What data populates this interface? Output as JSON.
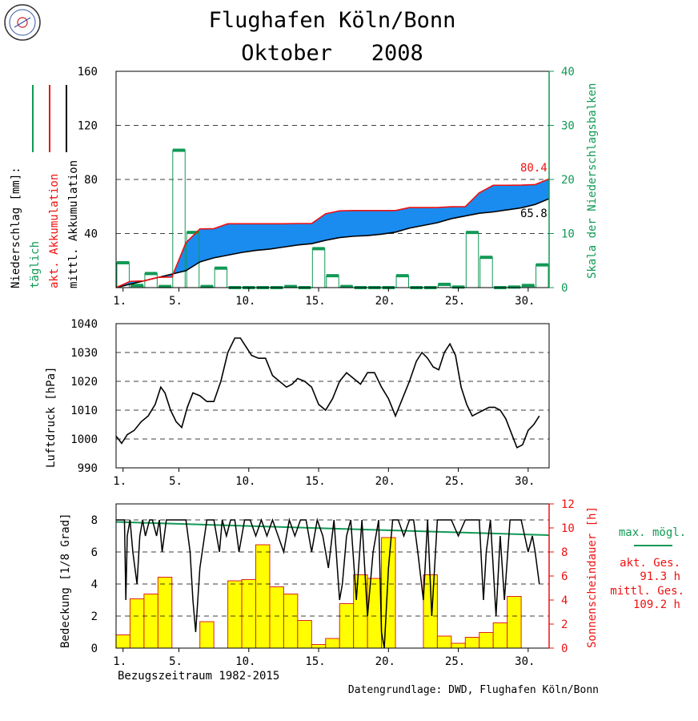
{
  "header": {
    "title_line1": "Flughafen Köln/Bonn",
    "title_line2": "Oktober   2008",
    "logo_icon": "weather-station-seal-icon"
  },
  "colors": {
    "green": "#119955",
    "red": "#ee1111",
    "black": "#000000",
    "blue_fill": "#1a8cf0",
    "yellow": "#ffff00",
    "bar_edge": "#dd2222"
  },
  "chart_data": [
    {
      "type": "bar",
      "panel": "precipitation",
      "ylabel_lines": [
        "Niederschlag [mm]:",
        "täglich",
        "akt. Akkumulation",
        "mittl. Akkumulation"
      ],
      "ylabel_right": "Skala der Niederschlagsbalken",
      "ylim": [
        0,
        160
      ],
      "yticks": [
        40,
        80,
        120,
        160
      ],
      "ylim_right": [
        0,
        40
      ],
      "yticks_right": [
        0,
        10,
        20,
        30,
        40
      ],
      "grid": true,
      "xticks": [
        "1.",
        "5.",
        "10.",
        "15.",
        "20.",
        "25.",
        "30."
      ],
      "x": [
        1,
        2,
        3,
        4,
        5,
        6,
        7,
        8,
        9,
        10,
        11,
        12,
        13,
        14,
        15,
        16,
        17,
        18,
        19,
        20,
        21,
        22,
        23,
        24,
        25,
        26,
        27,
        28,
        29,
        30,
        31
      ],
      "series": [
        {
          "kind": "daily_bars",
          "values": [
            4.6,
            0.4,
            2.6,
            0.2,
            25.4,
            10.2,
            0.2,
            3.6,
            0,
            0,
            0,
            0,
            0.2,
            0,
            7.2,
            2.2,
            0.2,
            0,
            0,
            0,
            2.2,
            0,
            0,
            0.6,
            0.1,
            10.2,
            5.6,
            0,
            0.1,
            0.4,
            4.2
          ]
        },
        {
          "kind": "current_accumulation",
          "values": [
            4.6,
            5,
            7.6,
            7.8,
            33.2,
            43.4,
            43.6,
            47.2,
            47.2,
            47.2,
            47.2,
            47.2,
            47.4,
            47.4,
            54.6,
            56.8,
            57,
            57,
            57,
            57,
            59.2,
            59.2,
            59.2,
            59.8,
            59.9,
            70.1,
            75.7,
            75.7,
            75.8,
            76.2,
            80.4
          ]
        },
        {
          "kind": "mean_accumulation",
          "values": [
            2.5,
            5,
            7.5,
            10,
            12.5,
            19,
            22,
            24,
            26,
            27.5,
            28.5,
            30,
            31.5,
            32.5,
            35,
            37,
            38,
            38.5,
            39.5,
            41,
            44,
            46,
            48,
            51,
            53,
            55,
            56,
            57.5,
            59,
            61.5,
            65.8
          ]
        }
      ],
      "annotations": {
        "current_total": "80.4",
        "mean_total": "65.8"
      }
    },
    {
      "type": "line",
      "panel": "pressure",
      "ylabel": "Luftdruck [hPa]",
      "ylim": [
        990,
        1040
      ],
      "yticks": [
        990,
        1000,
        1010,
        1020,
        1030,
        1040
      ],
      "grid": true,
      "xticks": [
        "1.",
        "5.",
        "10.",
        "15.",
        "20.",
        "25.",
        "30."
      ],
      "series": [
        {
          "name": "",
          "x": [
            1,
            1.4,
            1.8,
            2.3,
            2.8,
            3.3,
            3.8,
            4.2,
            4.5,
            4.9,
            5.3,
            5.7,
            6.1,
            6.5,
            7,
            7.5,
            8,
            8.5,
            9,
            9.5,
            9.9,
            10.3,
            10.7,
            11.2,
            11.7,
            12.2,
            12.7,
            13.2,
            13.6,
            14,
            14.5,
            15,
            15.5,
            16,
            16.5,
            17,
            17.5,
            18,
            18.5,
            19,
            19.5,
            20,
            20.5,
            21,
            21.5,
            22,
            22.5,
            22.9,
            23.3,
            23.7,
            24.1,
            24.5,
            24.9,
            25.3,
            25.7,
            26.1,
            26.5,
            26.9,
            27.3,
            27.7,
            28.1,
            28.5,
            28.9,
            29.3,
            29.7,
            30.1,
            30.5,
            30.9,
            31.3
          ],
          "values": [
            1001,
            998.5,
            1001.5,
            1003,
            1006,
            1008,
            1012,
            1018,
            1016,
            1010,
            1006,
            1004,
            1011,
            1016,
            1015,
            1013,
            1013,
            1020,
            1030,
            1035,
            1035,
            1032,
            1029,
            1028,
            1028,
            1022,
            1020,
            1018,
            1019,
            1021,
            1020,
            1018,
            1012,
            1010,
            1014,
            1020,
            1023,
            1021,
            1019,
            1023,
            1023,
            1018,
            1014,
            1008,
            1014,
            1020,
            1027,
            1030,
            1028,
            1025,
            1024,
            1030,
            1033,
            1029,
            1018,
            1012,
            1008,
            1009,
            1010,
            1011,
            1011,
            1010,
            1007,
            1002,
            997,
            998,
            1003,
            1005,
            1008
          ]
        }
      ]
    },
    {
      "type": "bar",
      "panel": "cloud_sunshine",
      "ylabel": "Bedeckung [1/8 Grad]",
      "ylabel_right": "Sonnenscheindauer [h]",
      "ylim": [
        0,
        9
      ],
      "yticks": [
        0,
        2,
        4,
        6,
        8
      ],
      "ylim_right": [
        0,
        12
      ],
      "yticks_right": [
        0,
        2,
        4,
        6,
        8,
        10,
        12
      ],
      "grid": true,
      "xticks": [
        "1.",
        "5.",
        "10.",
        "15.",
        "20.",
        "25.",
        "30."
      ],
      "xlabel": "Bezugszeitraum 1982-2015",
      "series": [
        {
          "kind": "sunshine_hours",
          "x": [
            1,
            2,
            3,
            4,
            5,
            6,
            7,
            8,
            9,
            10,
            11,
            12,
            13,
            14,
            15,
            16,
            17,
            18,
            19,
            20,
            21,
            22,
            23,
            24,
            25,
            26,
            27,
            28,
            29,
            30,
            31
          ],
          "values": [
            1.1,
            4.1,
            4.5,
            5.9,
            0,
            0,
            2.2,
            0,
            5.6,
            5.7,
            8.6,
            5.1,
            4.5,
            2.3,
            0.3,
            0.8,
            3.7,
            6.1,
            5.8,
            9.2,
            0,
            0,
            6.1,
            1,
            0.4,
            0.9,
            1.3,
            2.1,
            4.3,
            0,
            0
          ]
        },
        {
          "kind": "max_possible_sunshine",
          "x": [
            1,
            31
          ],
          "values": [
            10.5,
            9.4
          ]
        },
        {
          "kind": "cloud_cover",
          "x": [
            1,
            1.6,
            1.7,
            1.8,
            2,
            2.2,
            2.5,
            2.7,
            2.9,
            3.1,
            3.4,
            3.6,
            3.9,
            4.1,
            4.3,
            4.6,
            5,
            6,
            6.3,
            6.5,
            6.7,
            7,
            7.5,
            8,
            8.4,
            8.6,
            8.9,
            9.2,
            9.5,
            9.8,
            10.2,
            10.6,
            11,
            11.4,
            11.8,
            12.2,
            12.6,
            13,
            13.4,
            13.8,
            14.2,
            14.6,
            15,
            15.4,
            15.8,
            16.2,
            16.6,
            17,
            17.2,
            17.5,
            17.8,
            18.2,
            18.6,
            19,
            19.4,
            19.8,
            20,
            20.2,
            20.5,
            20.8,
            21.2,
            21.6,
            22,
            22.3,
            22.6,
            23,
            23.3,
            23.6,
            24,
            24.5,
            25,
            25.5,
            26,
            26.5,
            27,
            27.3,
            27.5,
            27.8,
            28.2,
            28.5,
            28.8,
            29.2,
            29.5,
            30,
            30.5,
            30.8,
            31,
            31.3
          ],
          "values": [
            8,
            8,
            3,
            7,
            8,
            6,
            4,
            7,
            8,
            7,
            8,
            8,
            7,
            8,
            6,
            8,
            8,
            8,
            6,
            3,
            1,
            5,
            8,
            8,
            6,
            8,
            7,
            8,
            8,
            6,
            8,
            8,
            7,
            8,
            7,
            8,
            7,
            6,
            8,
            7,
            8,
            8,
            6,
            8,
            7,
            5,
            8,
            3,
            4,
            7,
            8,
            3,
            8,
            2,
            6,
            8,
            1,
            0,
            5,
            8,
            8,
            7,
            8,
            8,
            6,
            3,
            8,
            2,
            8,
            8,
            8,
            7,
            8,
            8,
            8,
            3,
            6,
            8,
            2,
            7,
            3,
            8,
            8,
            8,
            6,
            7,
            6,
            4
          ]
        }
      ],
      "legend": {
        "max_label": "max. mögl.",
        "current_label": "akt. Ges.",
        "current_value": "91.3 h",
        "mean_label": "mittl. Ges.",
        "mean_value": "109.2 h"
      }
    }
  ],
  "footer": {
    "source": "Datengrundlage: DWD, Flughafen Köln/Bonn"
  }
}
